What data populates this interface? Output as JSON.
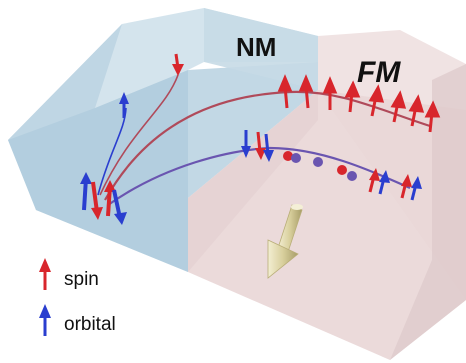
{
  "regions": {
    "nm_label": "NM",
    "fm_label": "FM"
  },
  "legend": {
    "spin_label": "spin",
    "orbital_label": "orbital"
  },
  "colors": {
    "nm_region": "#c7dbe6",
    "fm_region": "#eadcdc",
    "spin": "#d8262c",
    "orbital": "#2a3ecf",
    "magnetization": "#d9d2a6"
  }
}
